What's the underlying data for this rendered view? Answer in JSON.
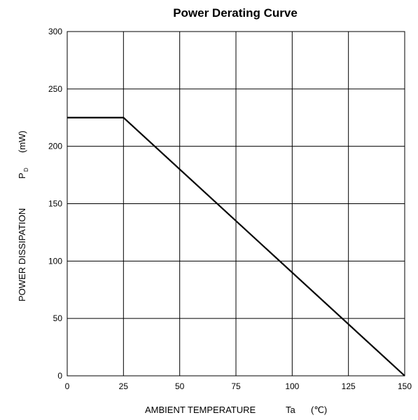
{
  "chart_data": {
    "type": "line",
    "title": "Power Derating Curve",
    "xlabel": {
      "main": "AMBIENT TEMPERATURE",
      "symbol": "Ta",
      "unit": "(℃)"
    },
    "ylabel": {
      "main": "POWER DISSIPATION",
      "symbol": "P",
      "subscript": "D",
      "unit": "(mW)"
    },
    "xlim": [
      0,
      150
    ],
    "ylim": [
      0,
      300
    ],
    "x_ticks": [
      0,
      25,
      50,
      75,
      100,
      125,
      150
    ],
    "y_ticks": [
      0,
      50,
      100,
      150,
      200,
      250,
      300
    ],
    "grid": true,
    "series": [
      {
        "x": [
          0,
          25,
          150
        ],
        "y": [
          225,
          225,
          0
        ]
      }
    ],
    "colors": {
      "line": "#000000",
      "grid": "#000000"
    }
  }
}
